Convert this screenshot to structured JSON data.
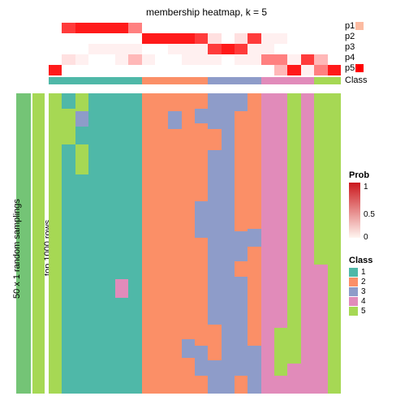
{
  "title": "membership heatmap, k = 5",
  "prob_labels": [
    "p1",
    "p2",
    "p3",
    "p4",
    "p5"
  ],
  "class_label": "Class",
  "side_outer_label": "50 x 1 random samplings",
  "side_inner_label": "top 1000 rows",
  "colors": {
    "class1": "#4fb8a8",
    "class2": "#fb8f67",
    "class3": "#8e9cc9",
    "class4": "#e18bba",
    "class5": "#a6d854",
    "side_outer": "#74c476",
    "side_inner": "#a6d854",
    "white": "#ffffff",
    "red_full": "#ff1a1a",
    "red_85": "#ff3b3b",
    "red_60": "#ff8080",
    "red_35": "#ffb8b8",
    "red_15": "#ffe0e0",
    "red_08": "#fff0f0",
    "legend_swatch": "#fcbba1",
    "gradient_top": "#cb181d",
    "gradient_bot": "#fff5f0"
  },
  "prob_legend": {
    "title": "Prob",
    "ticks": [
      {
        "label": "1",
        "pos": 0
      },
      {
        "label": "0.5",
        "pos": 34
      },
      {
        "label": "0",
        "pos": 62
      }
    ]
  },
  "class_legend": {
    "title": "Class",
    "items": [
      {
        "label": "1",
        "color": "#4fb8a8"
      },
      {
        "label": "2",
        "color": "#fb8f67"
      },
      {
        "label": "3",
        "color": "#8e9cc9"
      },
      {
        "label": "4",
        "color": "#e18bba"
      },
      {
        "label": "5",
        "color": "#a6d854"
      }
    ]
  },
  "n_cols": 22,
  "prob_rows": [
    [
      0,
      0.85,
      0.95,
      0.95,
      1.0,
      1.0,
      0.6,
      0,
      0,
      0,
      0,
      0,
      0,
      0,
      0,
      0,
      0,
      0,
      0,
      0,
      0,
      0
    ],
    [
      0,
      0,
      0,
      0,
      0,
      0,
      0,
      1.0,
      1.0,
      1.0,
      1.0,
      0.8,
      0.15,
      0,
      0.15,
      0.85,
      0.1,
      0.1,
      0,
      0,
      0,
      0
    ],
    [
      0,
      0,
      0,
      0.1,
      0.1,
      0.1,
      0.05,
      0,
      0,
      0.1,
      0.05,
      0.1,
      0.8,
      1.0,
      0.8,
      0.1,
      0.05,
      0,
      0,
      0,
      0,
      0
    ],
    [
      0,
      0.15,
      0.08,
      0,
      0,
      0.08,
      0.35,
      0.08,
      0,
      0,
      0.1,
      0.1,
      0.1,
      0,
      0.1,
      0.05,
      0.6,
      0.6,
      0.05,
      0.85,
      0.3,
      0
    ],
    [
      1.0,
      0,
      0,
      0,
      0,
      0,
      0,
      0,
      0,
      0,
      0,
      0,
      0,
      0,
      0,
      0,
      0,
      0.2,
      0.9,
      0.1,
      0.6,
      1.0
    ]
  ],
  "class_strip": [
    1,
    1,
    1,
    1,
    1,
    1,
    1,
    2,
    2,
    2,
    2,
    2,
    3,
    3,
    3,
    3,
    4,
    4,
    4,
    4,
    5,
    5
  ],
  "columns": [
    {
      "segs": [
        {
          "c": "class5",
          "h": 1.0
        }
      ]
    },
    {
      "segs": [
        {
          "c": "class1",
          "h": 0.05
        },
        {
          "c": "class5",
          "h": 0.12
        },
        {
          "c": "class1",
          "h": 0.83
        }
      ]
    },
    {
      "segs": [
        {
          "c": "class5",
          "h": 0.06
        },
        {
          "c": "class3",
          "h": 0.05
        },
        {
          "c": "class1",
          "h": 0.06
        },
        {
          "c": "class5",
          "h": 0.1
        },
        {
          "c": "class1",
          "h": 0.73
        }
      ]
    },
    {
      "segs": [
        {
          "c": "class1",
          "h": 1.0
        }
      ]
    },
    {
      "segs": [
        {
          "c": "class1",
          "h": 1.0
        }
      ]
    },
    {
      "segs": [
        {
          "c": "class1",
          "h": 0.62
        },
        {
          "c": "class4",
          "h": 0.06
        },
        {
          "c": "class1",
          "h": 0.32
        }
      ]
    },
    {
      "segs": [
        {
          "c": "class1",
          "h": 1.0
        }
      ]
    },
    {
      "segs": [
        {
          "c": "class2",
          "h": 1.0
        }
      ]
    },
    {
      "segs": [
        {
          "c": "class2",
          "h": 1.0
        }
      ]
    },
    {
      "segs": [
        {
          "c": "class2",
          "h": 0.06
        },
        {
          "c": "class3",
          "h": 0.06
        },
        {
          "c": "class2",
          "h": 0.88
        }
      ]
    },
    {
      "segs": [
        {
          "c": "class2",
          "h": 0.82
        },
        {
          "c": "class3",
          "h": 0.06
        },
        {
          "c": "class2",
          "h": 0.12
        }
      ]
    },
    {
      "segs": [
        {
          "c": "class2",
          "h": 0.05
        },
        {
          "c": "class3",
          "h": 0.05
        },
        {
          "c": "class2",
          "h": 0.26
        },
        {
          "c": "class3",
          "h": 0.12
        },
        {
          "c": "class2",
          "h": 0.36
        },
        {
          "c": "class3",
          "h": 0.1
        },
        {
          "c": "class2",
          "h": 0.06
        }
      ]
    },
    {
      "segs": [
        {
          "c": "class3",
          "h": 0.12
        },
        {
          "c": "class2",
          "h": 0.07
        },
        {
          "c": "class3",
          "h": 0.58
        },
        {
          "c": "class2",
          "h": 0.12
        },
        {
          "c": "class3",
          "h": 0.11
        }
      ]
    },
    {
      "segs": [
        {
          "c": "class3",
          "h": 1.0
        }
      ]
    },
    {
      "segs": [
        {
          "c": "class3",
          "h": 0.06
        },
        {
          "c": "class2",
          "h": 0.4
        },
        {
          "c": "class3",
          "h": 0.1
        },
        {
          "c": "class2",
          "h": 0.05
        },
        {
          "c": "class3",
          "h": 0.33
        },
        {
          "c": "class2",
          "h": 0.06
        }
      ]
    },
    {
      "segs": [
        {
          "c": "class2",
          "h": 0.45
        },
        {
          "c": "class3",
          "h": 0.06
        },
        {
          "c": "class2",
          "h": 0.33
        },
        {
          "c": "class3",
          "h": 0.16
        }
      ]
    },
    {
      "segs": [
        {
          "c": "class4",
          "h": 1.0
        }
      ]
    },
    {
      "segs": [
        {
          "c": "class4",
          "h": 0.78
        },
        {
          "c": "class5",
          "h": 0.16
        },
        {
          "c": "class4",
          "h": 0.06
        }
      ]
    },
    {
      "segs": [
        {
          "c": "class5",
          "h": 0.9
        },
        {
          "c": "class4",
          "h": 0.1
        }
      ]
    },
    {
      "segs": [
        {
          "c": "class4",
          "h": 1.0
        }
      ]
    },
    {
      "segs": [
        {
          "c": "class5",
          "h": 0.57
        },
        {
          "c": "class4",
          "h": 0.43
        }
      ]
    },
    {
      "segs": [
        {
          "c": "class5",
          "h": 1.0
        }
      ]
    }
  ]
}
